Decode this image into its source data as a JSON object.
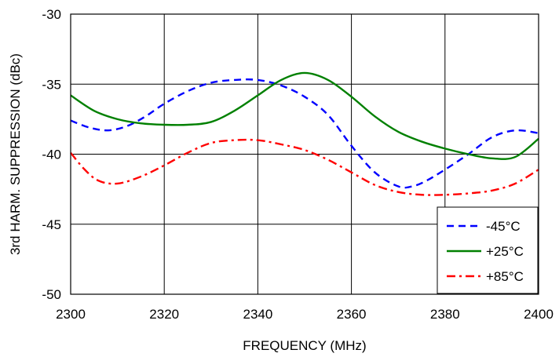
{
  "chart_data": {
    "type": "line",
    "title": "",
    "xlabel": "FREQUENCY (MHz)",
    "ylabel": "3rd HARM. SUPPRESSION (dBc)",
    "xlim": [
      2300,
      2400
    ],
    "ylim": [
      -50,
      -30
    ],
    "xticks": [
      2300,
      2320,
      2340,
      2360,
      2380,
      2400
    ],
    "yticks": [
      -50,
      -45,
      -40,
      -35,
      -30
    ],
    "grid": true,
    "legend_position": "bottom-right",
    "series": [
      {
        "name": "-45°C",
        "color": "#0000ff",
        "dash": "dash",
        "x": [
          2300,
          2304,
          2308,
          2312,
          2316,
          2320,
          2325,
          2330,
          2335,
          2340,
          2345,
          2350,
          2355,
          2360,
          2365,
          2370,
          2373,
          2376,
          2380,
          2385,
          2390,
          2395,
          2400
        ],
        "y": [
          -37.6,
          -38.1,
          -38.3,
          -38.0,
          -37.3,
          -36.4,
          -35.5,
          -34.9,
          -34.7,
          -34.7,
          -35.1,
          -35.9,
          -37.2,
          -39.4,
          -41.3,
          -42.3,
          -42.3,
          -41.9,
          -41.1,
          -40.0,
          -38.8,
          -38.3,
          -38.5
        ]
      },
      {
        "name": "+25°C",
        "color": "#008000",
        "dash": "solid",
        "x": [
          2300,
          2305,
          2310,
          2315,
          2320,
          2325,
          2330,
          2335,
          2340,
          2345,
          2350,
          2355,
          2360,
          2365,
          2370,
          2375,
          2380,
          2385,
          2390,
          2395,
          2400
        ],
        "y": [
          -35.8,
          -36.9,
          -37.5,
          -37.8,
          -37.9,
          -37.9,
          -37.7,
          -36.9,
          -35.8,
          -34.7,
          -34.2,
          -34.7,
          -35.9,
          -37.3,
          -38.4,
          -39.1,
          -39.6,
          -40.0,
          -40.3,
          -40.2,
          -38.9
        ]
      },
      {
        "name": "+85°C",
        "color": "#ff0000",
        "dash": "dashdot",
        "x": [
          2300,
          2303,
          2306,
          2310,
          2315,
          2320,
          2325,
          2330,
          2335,
          2340,
          2345,
          2350,
          2355,
          2360,
          2365,
          2370,
          2375,
          2380,
          2385,
          2390,
          2395,
          2400
        ],
        "y": [
          -39.9,
          -41.1,
          -41.9,
          -42.1,
          -41.6,
          -40.8,
          -39.9,
          -39.2,
          -39.0,
          -39.0,
          -39.3,
          -39.7,
          -40.4,
          -41.3,
          -42.2,
          -42.7,
          -42.9,
          -42.9,
          -42.8,
          -42.6,
          -42.1,
          -41.1
        ]
      }
    ]
  }
}
